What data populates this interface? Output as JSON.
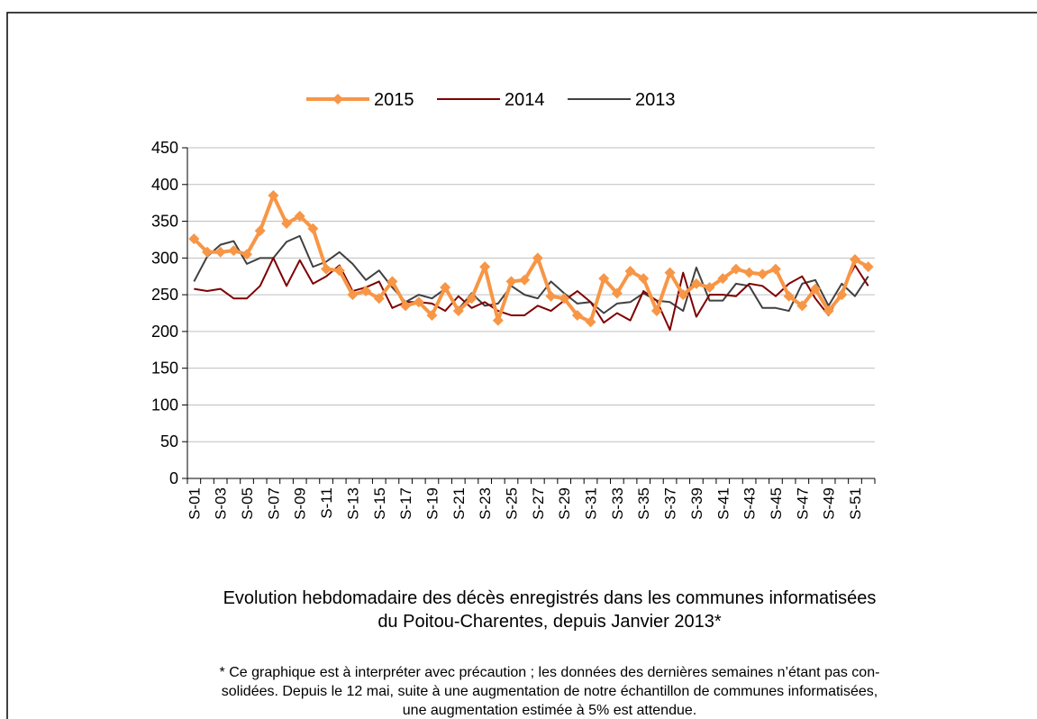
{
  "chart_data": {
    "type": "line",
    "categories": [
      "S-01",
      null,
      "S-03",
      null,
      "S-05",
      null,
      "S-07",
      null,
      "S-09",
      null,
      "S-11",
      null,
      "S-13",
      null,
      "S-15",
      null,
      "S-17",
      null,
      "S-19",
      null,
      "S-21",
      null,
      "S-23",
      null,
      "S-25",
      null,
      "S-27",
      null,
      "S-29",
      null,
      "S-31",
      null,
      "S-33",
      null,
      "S-35",
      null,
      "S-37",
      null,
      "S-39",
      null,
      "S-41",
      null,
      "S-43",
      null,
      "S-45",
      null,
      "S-47",
      null,
      "S-49",
      null,
      "S-51",
      null
    ],
    "series": [
      {
        "name": "2015",
        "color": "#f79646",
        "values": [
          326,
          308,
          308,
          310,
          305,
          337,
          385,
          347,
          357,
          340,
          285,
          283,
          250,
          255,
          245,
          268,
          235,
          240,
          222,
          260,
          228,
          245,
          288,
          215,
          268,
          270,
          300,
          248,
          245,
          222,
          213,
          272,
          252,
          282,
          272,
          228,
          280,
          250,
          265,
          260,
          272,
          285,
          280,
          278,
          285,
          248,
          235,
          258,
          228,
          250,
          298,
          288
        ]
      },
      {
        "name": "2014",
        "color": "#7f0000",
        "values": [
          258,
          255,
          258,
          245,
          245,
          262,
          300,
          262,
          297,
          265,
          275,
          290,
          255,
          260,
          268,
          232,
          240,
          240,
          238,
          228,
          248,
          232,
          240,
          228,
          222,
          222,
          235,
          228,
          242,
          255,
          240,
          212,
          225,
          215,
          255,
          242,
          202,
          280,
          220,
          250,
          250,
          248,
          265,
          262,
          248,
          265,
          275,
          245,
          222,
          255,
          290,
          262
        ]
      },
      {
        "name": "2013",
        "color": "#404040",
        "values": [
          268,
          302,
          318,
          323,
          292,
          300,
          300,
          322,
          330,
          288,
          295,
          308,
          292,
          270,
          283,
          260,
          240,
          250,
          245,
          258,
          230,
          252,
          235,
          238,
          262,
          250,
          245,
          268,
          252,
          238,
          240,
          225,
          238,
          240,
          252,
          242,
          240,
          228,
          287,
          242,
          242,
          265,
          262,
          232,
          232,
          228,
          265,
          270,
          235,
          265,
          248,
          275
        ]
      }
    ],
    "ylim": [
      0,
      450
    ],
    "yticks": [
      0,
      50,
      100,
      150,
      200,
      250,
      300,
      350,
      400,
      450
    ],
    "grid": true,
    "legend": "top",
    "title": [
      "Evolution hebdomadaire des décès enregistrés dans les communes informatisées",
      "du Poitou-Charentes, depuis Janvier  2013*"
    ],
    "footnote": [
      "* Ce graphique est à interpréter avec précaution ; les données des dernières semaines n’étant pas con-",
      "solidées. Depuis le 12 mai, suite à une augmentation de notre échantillon de communes informatisées,",
      "une augmentation estimée à 5% est attendue."
    ]
  }
}
